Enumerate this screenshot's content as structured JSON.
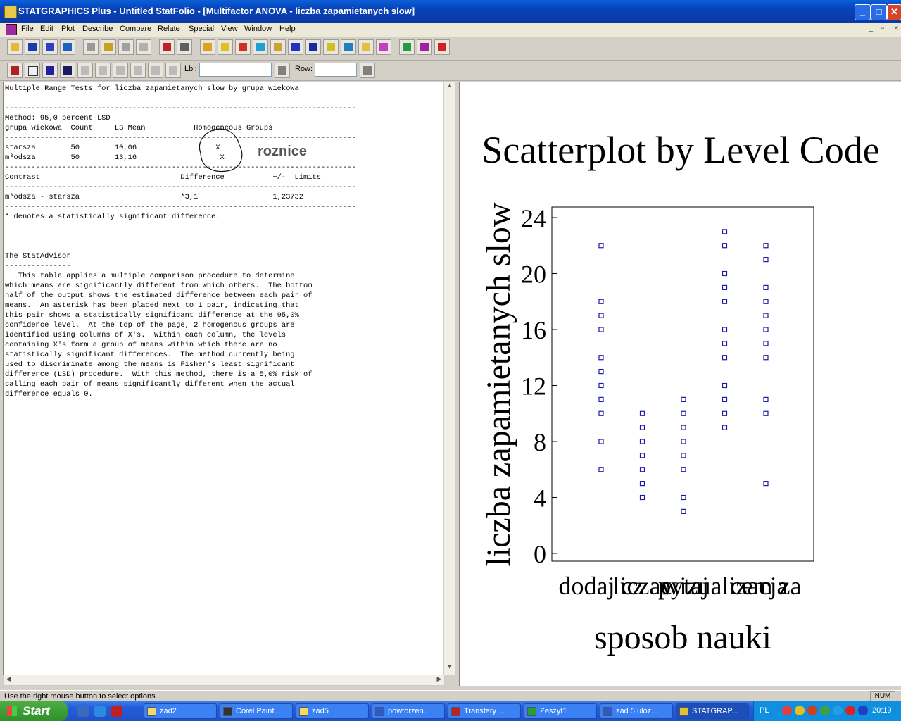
{
  "window": {
    "title": "STATGRAPHICS Plus - Untitled StatFolio - [Multifactor ANOVA - liczba zapamietanych slow]",
    "controls": [
      "_",
      "□",
      "✕"
    ]
  },
  "menu": {
    "items": [
      "File",
      "Edit",
      "Plot",
      "Describe",
      "Compare",
      "Relate",
      "Special",
      "View",
      "Window",
      "Help"
    ],
    "mdi_controls": [
      "_",
      "▫",
      "×"
    ]
  },
  "toolbar2": {
    "lbl_label": "Lbl:",
    "lbl_value": "",
    "row_label": "Row:",
    "row_value": ""
  },
  "output_text": "Multiple Range Tests for liczba zapamietanych slow by grupa wiekowa\n\n--------------------------------------------------------------------------------\nMethod: 95,0 percent LSD\ngrupa wiekowa  Count     LS Mean           Homogeneous Groups\n--------------------------------------------------------------------------------\nstarsza        50        10,06                  X\nm³odsza        50        13,16                   X\n--------------------------------------------------------------------------------\nContrast                                Difference           +/-  Limits\n--------------------------------------------------------------------------------\nm³odsza - starsza                       *3,1                 1,23732\n--------------------------------------------------------------------------------\n* denotes a statistically significant difference.\n\n\n\nThe StatAdvisor\n---------------\n   This table applies a multiple comparison procedure to determine\nwhich means are significantly different from which others.  The bottom\nhalf of the output shows the estimated difference between each pair of\nmeans.  An asterisk has been placed next to 1 pair, indicating that\nthis pair shows a statistically significant difference at the 95,0%\nconfidence level.  At the top of the page, 2 homogenous groups are\nidentified using columns of X's.  Within each column, the levels\ncontaining X's form a group of means within which there are no\nstatistically significant differences.  The method currently being\nused to discriminate among the means is Fisher's least significant\ndifference (LSD) procedure.  With this method, there is a 5,0% risk of\ncalling each pair of means significantly different when the actual\ndifference equals 0.",
  "annotation": {
    "text": "roznice"
  },
  "chart_data": {
    "type": "scatter",
    "title": "Scatterplot by Level Code",
    "xlabel": "sposob nauki",
    "ylabel": "liczba zapamietanych slow",
    "categories": [
      "dodaj cz",
      "liczac",
      "pytaj",
      "wizualizacja",
      "cem za"
    ],
    "category_label_overlap_note": "",
    "ylim": [
      0,
      24
    ],
    "yticks": [
      0,
      4,
      8,
      12,
      16,
      20,
      24
    ],
    "grid": false,
    "points": [
      {
        "x": 1,
        "y": 22
      },
      {
        "x": 1,
        "y": 18
      },
      {
        "x": 1,
        "y": 17
      },
      {
        "x": 1,
        "y": 16
      },
      {
        "x": 1,
        "y": 14
      },
      {
        "x": 1,
        "y": 13
      },
      {
        "x": 1,
        "y": 12
      },
      {
        "x": 1,
        "y": 11
      },
      {
        "x": 1,
        "y": 10
      },
      {
        "x": 1,
        "y": 8
      },
      {
        "x": 1,
        "y": 6
      },
      {
        "x": 2,
        "y": 10
      },
      {
        "x": 2,
        "y": 9
      },
      {
        "x": 2,
        "y": 8
      },
      {
        "x": 2,
        "y": 7
      },
      {
        "x": 2,
        "y": 6
      },
      {
        "x": 2,
        "y": 5
      },
      {
        "x": 2,
        "y": 4
      },
      {
        "x": 3,
        "y": 11
      },
      {
        "x": 3,
        "y": 10
      },
      {
        "x": 3,
        "y": 9
      },
      {
        "x": 3,
        "y": 8
      },
      {
        "x": 3,
        "y": 7
      },
      {
        "x": 3,
        "y": 6
      },
      {
        "x": 3,
        "y": 4
      },
      {
        "x": 3,
        "y": 3
      },
      {
        "x": 4,
        "y": 23
      },
      {
        "x": 4,
        "y": 22
      },
      {
        "x": 4,
        "y": 20
      },
      {
        "x": 4,
        "y": 19
      },
      {
        "x": 4,
        "y": 18
      },
      {
        "x": 4,
        "y": 16
      },
      {
        "x": 4,
        "y": 15
      },
      {
        "x": 4,
        "y": 14
      },
      {
        "x": 4,
        "y": 12
      },
      {
        "x": 4,
        "y": 11
      },
      {
        "x": 4,
        "y": 10
      },
      {
        "x": 4,
        "y": 9
      },
      {
        "x": 5,
        "y": 22
      },
      {
        "x": 5,
        "y": 21
      },
      {
        "x": 5,
        "y": 19
      },
      {
        "x": 5,
        "y": 18
      },
      {
        "x": 5,
        "y": 17
      },
      {
        "x": 5,
        "y": 16
      },
      {
        "x": 5,
        "y": 15
      },
      {
        "x": 5,
        "y": 14
      },
      {
        "x": 5,
        "y": 11
      },
      {
        "x": 5,
        "y": 10
      },
      {
        "x": 5,
        "y": 5
      }
    ],
    "marker_color": "#1a1aa8"
  },
  "statusbar": {
    "message": "Use the right mouse button to select options",
    "num": "NUM"
  },
  "taskbar": {
    "start": "Start",
    "tasks": [
      {
        "label": "zad2",
        "active": false
      },
      {
        "label": "Corel Paint...",
        "active": false
      },
      {
        "label": "zad5",
        "active": false
      },
      {
        "label": "powtorzen...",
        "active": false
      },
      {
        "label": "Transfery ...",
        "active": false
      },
      {
        "label": "Zeszyt1",
        "active": false
      },
      {
        "label": "zad 5 uloz...",
        "active": false
      },
      {
        "label": "STATGRAP...",
        "active": true
      }
    ],
    "language": "PL",
    "clock": "20:19"
  }
}
